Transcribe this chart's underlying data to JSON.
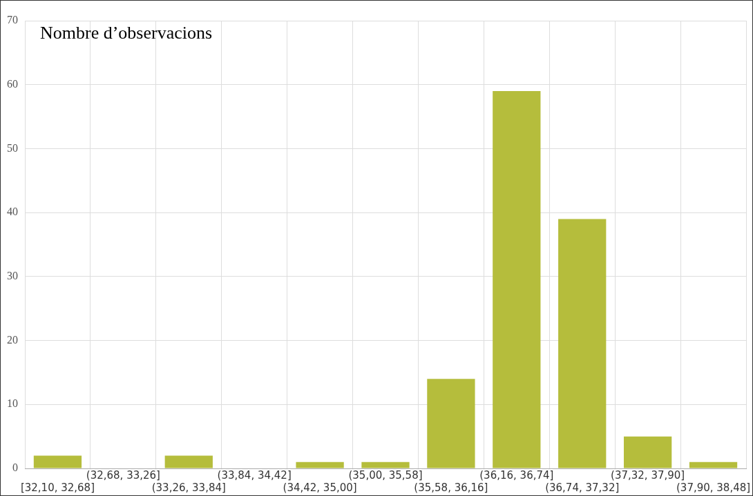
{
  "chart_data": {
    "type": "bar",
    "title": "Nombre d’observacions",
    "categories": [
      "[32,10, 32,68]",
      "(32,68, 33,26]",
      "(33,26, 33,84]",
      "(33,84, 34,42]",
      "(34,42, 35,00]",
      "(35,00, 35,58]",
      "(35,58, 36,16]",
      "(36,16, 36,74]",
      "(36,74, 37,32]",
      "(37,32, 37,90]",
      "(37,90, 38,48]"
    ],
    "values": [
      2,
      0,
      2,
      0,
      1,
      1,
      14,
      59,
      39,
      5,
      1
    ],
    "color": "#b5bd3c",
    "ylim": [
      0,
      70
    ],
    "yticks": [
      0,
      10,
      20,
      30,
      40,
      50,
      60,
      70
    ],
    "grid": true
  }
}
